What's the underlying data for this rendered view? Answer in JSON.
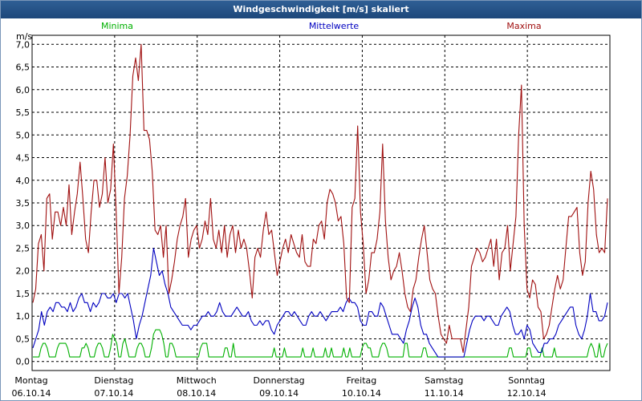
{
  "window": {
    "title": "Windgeschwindigkeit [m/s] skaliert"
  },
  "chart_data": {
    "type": "line",
    "title": "Windgeschwindigkeit [m/s] skaliert",
    "ylabel": "m/s",
    "ylim": [
      -0.2,
      7.2
    ],
    "yticks": [
      "0,0",
      "0,5",
      "1,0",
      "1,5",
      "2,0",
      "2,5",
      "3,0",
      "3,5",
      "4,0",
      "4,5",
      "5,0",
      "5,5",
      "6,0",
      "6,5",
      "7,0"
    ],
    "xticks": [
      {
        "day": "Montag",
        "date": "06.10.14"
      },
      {
        "day": "Dienstag",
        "date": "07.10.14"
      },
      {
        "day": "Mittwoch",
        "date": "08.10.14"
      },
      {
        "day": "Donnerstag",
        "date": "09.10.14"
      },
      {
        "day": "Freitag",
        "date": "10.10.14"
      },
      {
        "day": "Samstag",
        "date": "11.10.14"
      },
      {
        "day": "Sonntag",
        "date": "12.10.14"
      }
    ],
    "grid": true,
    "legend_position": "top",
    "series": [
      {
        "name": "Minima",
        "color": "#00b000",
        "values": [
          0.1,
          0.1,
          0.1,
          0.1,
          0.3,
          0.4,
          0.4,
          0.3,
          0.1,
          0.1,
          0.1,
          0.1,
          0.3,
          0.4,
          0.4,
          0.4,
          0.4,
          0.3,
          0.1,
          0.1,
          0.1,
          0.1,
          0.1,
          0.1,
          0.3,
          0.3,
          0.4,
          0.3,
          0.1,
          0.1,
          0.1,
          0.3,
          0.4,
          0.4,
          0.3,
          0.1,
          0.1,
          0.1,
          0.3,
          0.6,
          0.5,
          0.4,
          0.1,
          0.1,
          0.4,
          0.5,
          0.3,
          0.1,
          0.1,
          0.1,
          0.1,
          0.3,
          0.4,
          0.4,
          0.3,
          0.1,
          0.1,
          0.1,
          0.3,
          0.6,
          0.7,
          0.7,
          0.7,
          0.6,
          0.4,
          0.1,
          0.1,
          0.4,
          0.4,
          0.3,
          0.1,
          0.1,
          0.1,
          0.1,
          0.1,
          0.1,
          0.1,
          0.1,
          0.1,
          0.1,
          0.1,
          0.1,
          0.3,
          0.4,
          0.4,
          0.4,
          0.1,
          0.1,
          0.1,
          0.1,
          0.1,
          0.1,
          0.1,
          0.1,
          0.3,
          0.3,
          0.1,
          0.1,
          0.4,
          0.1,
          0.1,
          0.1,
          0.1,
          0.1,
          0.1,
          0.1,
          0.1,
          0.1,
          0.1,
          0.1,
          0.1,
          0.1,
          0.1,
          0.1,
          0.1,
          0.1,
          0.1,
          0.1,
          0.3,
          0.1,
          0.1,
          0.1,
          0.1,
          0.3,
          0.1,
          0.1,
          0.1,
          0.1,
          0.1,
          0.1,
          0.1,
          0.1,
          0.3,
          0.1,
          0.1,
          0.1,
          0.1,
          0.3,
          0.1,
          0.1,
          0.1,
          0.1,
          0.1,
          0.3,
          0.1,
          0.1,
          0.3,
          0.1,
          0.1,
          0.1,
          0.1,
          0.1,
          0.3,
          0.1,
          0.1,
          0.3,
          0.1,
          0.1,
          0.1,
          0.1,
          0.1,
          0.3,
          0.4,
          0.4,
          0.3,
          0.3,
          0.1,
          0.1,
          0.1,
          0.1,
          0.3,
          0.4,
          0.4,
          0.3,
          0.1,
          0.1,
          0.1,
          0.1,
          0.1,
          0.1,
          0.1,
          0.1,
          0.4,
          0.4,
          0.1,
          0.1,
          0.1,
          0.1,
          0.1,
          0.1,
          0.1,
          0.3,
          0.3,
          0.1,
          0.1,
          0.1,
          0.1,
          0.1,
          0.1,
          0.1,
          0.1,
          0.1,
          0.1,
          0.1,
          0.1,
          0.1,
          0.1,
          0.1,
          0.1,
          0.1,
          0.1,
          0.1,
          0.1,
          0.1,
          0.1,
          0.1,
          0.1,
          0.1,
          0.1,
          0.1,
          0.1,
          0.1,
          0.1,
          0.1,
          0.1,
          0.1,
          0.1,
          0.1,
          0.1,
          0.1,
          0.1,
          0.1,
          0.1,
          0.3,
          0.3,
          0.1,
          0.1,
          0.1,
          0.1,
          0.1,
          0.1,
          0.1,
          0.3,
          0.3,
          0.1,
          0.1,
          0.1,
          0.1,
          0.1,
          0.3,
          0.1,
          0.1,
          0.1,
          0.1,
          0.1,
          0.3,
          0.1,
          0.1,
          0.1,
          0.1,
          0.1,
          0.1,
          0.1,
          0.1,
          0.1,
          0.1,
          0.1,
          0.1,
          0.1,
          0.1,
          0.1,
          0.1,
          0.3,
          0.4,
          0.3,
          0.1,
          0.1,
          0.4,
          0.1,
          0.1,
          0.3,
          0.4
        ]
      },
      {
        "name": "Mittelwerte",
        "color": "#0000c0",
        "values": [
          0.3,
          0.5,
          0.7,
          1.1,
          0.8,
          1.1,
          1.2,
          1.1,
          1.3,
          1.3,
          1.2,
          1.2,
          1.1,
          1.3,
          1.1,
          1.2,
          1.4,
          1.5,
          1.3,
          1.3,
          1.1,
          1.3,
          1.2,
          1.3,
          1.5,
          1.5,
          1.4,
          1.4,
          1.5,
          1.3,
          1.5,
          1.5,
          1.4,
          1.5,
          1.2,
          0.9,
          0.5,
          0.8,
          1.0,
          1.3,
          1.6,
          1.9,
          2.5,
          2.2,
          1.9,
          2.0,
          1.7,
          1.5,
          1.2,
          1.1,
          1.0,
          0.9,
          0.8,
          0.8,
          0.8,
          0.7,
          0.8,
          0.8,
          0.9,
          1.0,
          1.0,
          1.1,
          1.0,
          1.0,
          1.1,
          1.3,
          1.1,
          1.0,
          1.0,
          1.0,
          1.1,
          1.2,
          1.1,
          1.0,
          1.0,
          1.1,
          0.9,
          0.8,
          0.8,
          0.9,
          0.8,
          0.9,
          0.9,
          0.7,
          0.6,
          0.8,
          0.9,
          1.0,
          1.1,
          1.1,
          1.0,
          1.1,
          1.0,
          0.9,
          0.8,
          0.8,
          1.0,
          1.1,
          1.0,
          1.0,
          1.1,
          1.0,
          0.9,
          1.0,
          1.1,
          1.1,
          1.1,
          1.2,
          1.1,
          1.3,
          1.4,
          1.3,
          1.3,
          1.2,
          0.9,
          0.8,
          0.8,
          1.1,
          1.1,
          1.0,
          1.0,
          1.3,
          1.2,
          1.0,
          0.8,
          0.6,
          0.6,
          0.6,
          0.5,
          0.4,
          0.7,
          0.9,
          1.2,
          1.4,
          1.2,
          0.8,
          0.6,
          0.6,
          0.4,
          0.3,
          0.2,
          0.1,
          0.1,
          0.1,
          0.1,
          0.1,
          0.1,
          0.1,
          0.1,
          0.1,
          0.1,
          0.4,
          0.7,
          0.9,
          1.0,
          1.0,
          1.0,
          0.9,
          1.0,
          1.0,
          0.9,
          0.8,
          0.8,
          1.0,
          1.1,
          1.2,
          1.1,
          0.8,
          0.6,
          0.6,
          0.7,
          0.5,
          0.8,
          0.7,
          0.4,
          0.3,
          0.2,
          0.2,
          0.4,
          0.4,
          0.5,
          0.5,
          0.6,
          0.8,
          0.9,
          1.0,
          1.1,
          1.2,
          1.2,
          0.8,
          0.6,
          0.5,
          0.7,
          1.0,
          1.5,
          1.1,
          1.1,
          0.9,
          0.9,
          1.0,
          1.3
        ]
      },
      {
        "name": "Maxima",
        "color": "#a01010",
        "values": [
          1.3,
          1.6,
          2.6,
          2.8,
          2.0,
          3.6,
          3.7,
          2.7,
          3.3,
          3.3,
          3.0,
          3.4,
          3.0,
          3.9,
          2.8,
          3.3,
          3.7,
          4.4,
          3.6,
          2.7,
          2.4,
          3.3,
          4.0,
          4.0,
          3.4,
          3.7,
          4.5,
          3.5,
          3.8,
          4.8,
          3.3,
          1.5,
          2.3,
          3.6,
          4.1,
          5.0,
          6.3,
          6.7,
          6.2,
          7.0,
          5.1,
          5.1,
          4.9,
          4.2,
          2.9,
          2.8,
          3.0,
          2.3,
          3.0,
          1.5,
          1.8,
          2.2,
          2.7,
          3.0,
          3.2,
          3.6,
          2.3,
          2.7,
          2.9,
          3.0,
          2.5,
          2.7,
          3.1,
          2.8,
          3.6,
          2.7,
          2.5,
          2.9,
          2.4,
          3.0,
          2.3,
          2.8,
          3.0,
          2.4,
          2.9,
          2.5,
          2.7,
          2.5,
          2.0,
          1.4,
          2.3,
          2.5,
          2.3,
          2.9,
          3.3,
          2.8,
          2.9,
          2.4,
          1.9,
          2.2,
          2.5,
          2.7,
          2.4,
          2.8,
          2.6,
          2.4,
          2.3,
          2.8,
          2.2,
          2.1,
          2.1,
          2.7,
          2.6,
          3.0,
          3.1,
          2.7,
          3.5,
          3.8,
          3.7,
          3.5,
          3.1,
          3.2,
          2.6,
          1.4,
          1.3,
          3.4,
          3.6,
          5.2,
          3.3,
          2.6,
          1.5,
          1.8,
          2.4,
          2.4,
          2.7,
          3.3,
          4.8,
          3.1,
          2.3,
          1.8,
          2.0,
          2.1,
          2.4,
          2.0,
          1.5,
          1.2,
          1.1,
          1.6,
          1.8,
          2.3,
          2.7,
          3.0,
          2.4,
          1.8,
          1.6,
          1.5,
          1.0,
          0.6,
          0.5,
          0.4,
          0.8,
          0.5,
          0.5,
          0.5,
          0.5,
          0.2,
          0.7,
          1.2,
          2.1,
          2.3,
          2.5,
          2.4,
          2.2,
          2.3,
          2.5,
          2.7,
          2.1,
          2.7,
          1.8,
          2.4,
          2.5,
          3.0,
          2.0,
          2.6,
          3.2,
          5.0,
          6.1,
          3.0,
          1.6,
          1.4,
          1.8,
          1.7,
          1.2,
          1.1,
          0.5,
          0.6,
          0.8,
          1.2,
          1.6,
          1.9,
          1.6,
          1.8,
          2.5,
          3.2,
          3.2,
          3.3,
          3.4,
          2.4,
          1.9,
          2.2,
          3.5,
          4.2,
          3.8,
          2.8,
          2.4,
          2.5,
          2.4,
          3.6
        ]
      }
    ]
  }
}
